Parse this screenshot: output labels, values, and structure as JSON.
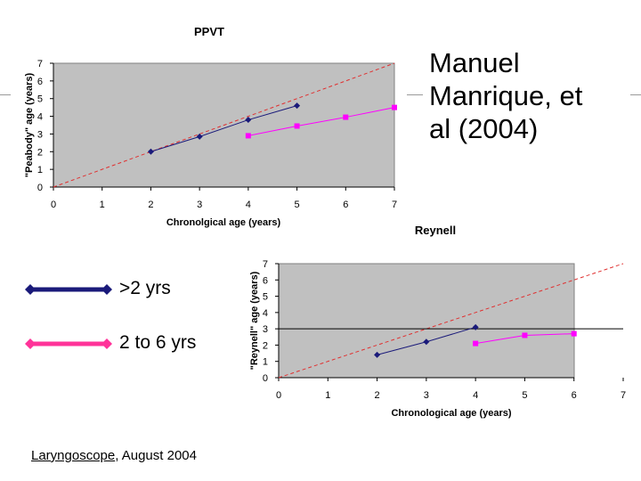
{
  "slide": {
    "title_lines": [
      "Manuel",
      "Manrique, et",
      "al (2004)"
    ],
    "citation": {
      "journal": "Laryngoscope",
      "rest": ", August 2004"
    },
    "colors": {
      "series_a": "#1a1a7a",
      "series_b": "#ff00ff",
      "reference": "#e03030",
      "plot_bg": "#c0c0c0"
    }
  },
  "legend": [
    {
      "label": ">2 yrs",
      "color": "#1a1a7a"
    },
    {
      "label": "2 to 6 yrs",
      "color": "#ff3399"
    }
  ],
  "chart_data": [
    {
      "type": "line",
      "title": "PPVT",
      "xlabel": "Chronolgical age (years)",
      "ylabel": "\"Peabody\" age (years)",
      "xlim": [
        0,
        7
      ],
      "ylim": [
        0,
        7
      ],
      "xticks": [
        0,
        1,
        2,
        3,
        4,
        5,
        6,
        7
      ],
      "yticks": [
        0,
        1,
        2,
        3,
        4,
        5,
        6,
        7
      ],
      "grid": false,
      "reference_line": {
        "style": "dashed",
        "color": "#e03030",
        "from": [
          0,
          0
        ],
        "to": [
          7,
          7
        ]
      },
      "series": [
        {
          "color": "#1a1a7a",
          "marker": "diamond",
          "x": [
            2,
            3,
            4,
            5
          ],
          "y": [
            2.0,
            2.85,
            3.8,
            4.6
          ]
        },
        {
          "color": "#ff00ff",
          "marker": "square",
          "x": [
            4,
            5,
            6,
            7
          ],
          "y": [
            2.9,
            3.45,
            3.95,
            4.5
          ]
        }
      ]
    },
    {
      "type": "line",
      "title": "Reynell",
      "xlabel": "Chronological age (years)",
      "ylabel": "\"Reynell\" age (years)",
      "xlim": [
        0,
        7
      ],
      "ylim": [
        0,
        7
      ],
      "xticks": [
        0,
        1,
        2,
        3,
        4,
        5,
        6,
        7
      ],
      "yticks": [
        0,
        1,
        2,
        3,
        4,
        5,
        6,
        7
      ],
      "grid": false,
      "reference_line": {
        "style": "dashed",
        "color": "#e03030",
        "from": [
          0,
          0
        ],
        "to": [
          7,
          7
        ]
      },
      "horizontal_line": {
        "y": 3,
        "color": "#000000"
      },
      "series": [
        {
          "color": "#1a1a7a",
          "marker": "diamond",
          "x": [
            2,
            3,
            4
          ],
          "y": [
            1.4,
            2.2,
            3.1
          ]
        },
        {
          "color": "#ff00ff",
          "marker": "square",
          "x": [
            4,
            5,
            6
          ],
          "y": [
            2.1,
            2.6,
            2.7
          ]
        }
      ]
    }
  ]
}
